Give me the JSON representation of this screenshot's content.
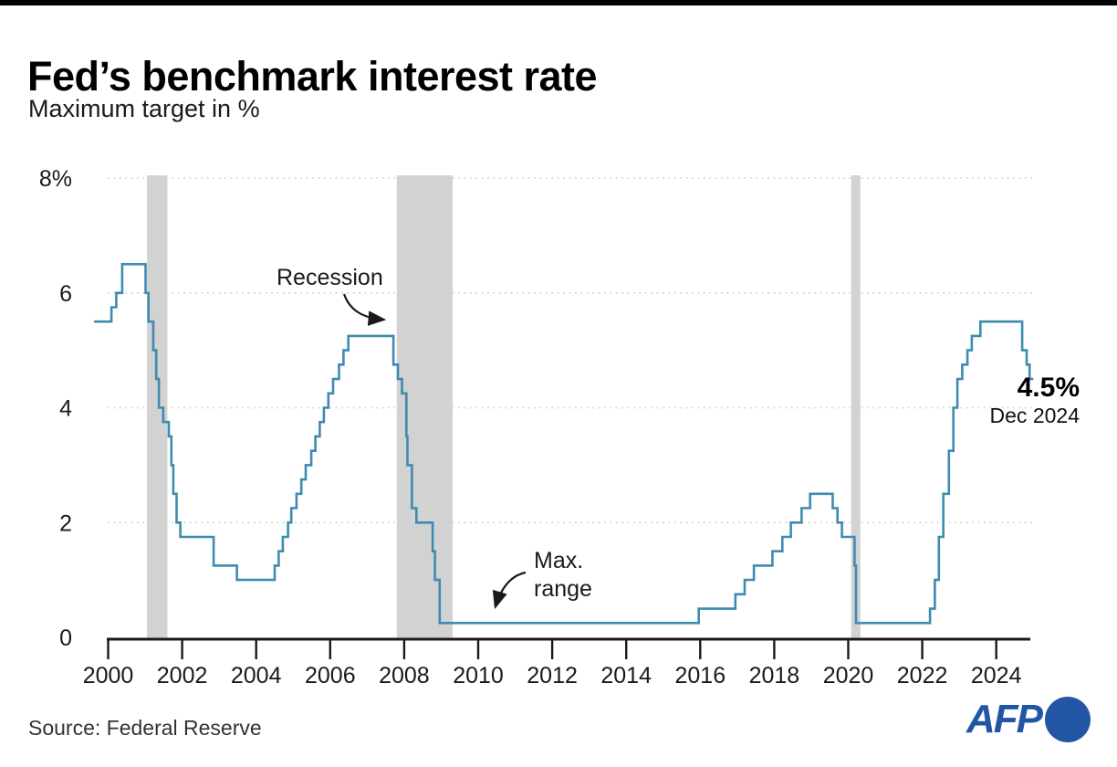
{
  "header": {
    "title": "Fed’s benchmark interest rate",
    "subtitle": "Maximum target in %"
  },
  "annotations": {
    "recession_label": "Recession",
    "max_range_line1": "Max.",
    "max_range_line2": "range",
    "latest_value": "4.5%",
    "latest_date": "Dec 2024"
  },
  "footer": {
    "source": "Source: Federal Reserve",
    "logo_text": "AFP"
  },
  "colors": {
    "line": "#3e8bb0",
    "recession_band": "#d2d2d2",
    "grid": "#d6d6d6",
    "axis": "#1a1a1a",
    "text": "#1a1a1a",
    "afp_blue": "#2256a5"
  },
  "chart_data": {
    "type": "line",
    "step": true,
    "title": "Fed’s benchmark interest rate",
    "ylabel": "Maximum target in %",
    "unit": "%",
    "xlim": [
      1999.62,
      2025.0
    ],
    "ylim": [
      0,
      8
    ],
    "grid": "horizontal-dotted",
    "legend": "none",
    "x_ticks": [
      2000,
      2002,
      2004,
      2006,
      2008,
      2010,
      2012,
      2014,
      2016,
      2018,
      2020,
      2022,
      2024
    ],
    "y_ticks": [
      {
        "label": "8%",
        "value": 8
      },
      {
        "label": "6",
        "value": 6
      },
      {
        "label": "4",
        "value": 4
      },
      {
        "label": "2",
        "value": 2
      },
      {
        "label": "0",
        "value": 0
      }
    ],
    "recession_bands": [
      [
        2001.05,
        2001.6
      ],
      [
        2007.8,
        2009.31
      ],
      [
        2020.08,
        2020.33
      ]
    ],
    "series": [
      {
        "name": "Fed benchmark interest rate (maximum target, %)",
        "points": [
          [
            1999.62,
            5.5
          ],
          [
            2000.09,
            5.75
          ],
          [
            2000.22,
            6.0
          ],
          [
            2000.38,
            6.5
          ],
          [
            2001.01,
            6.0
          ],
          [
            2001.09,
            5.5
          ],
          [
            2001.22,
            5.0
          ],
          [
            2001.3,
            4.5
          ],
          [
            2001.37,
            4.0
          ],
          [
            2001.49,
            3.75
          ],
          [
            2001.64,
            3.5
          ],
          [
            2001.71,
            3.0
          ],
          [
            2001.76,
            2.5
          ],
          [
            2001.85,
            2.0
          ],
          [
            2001.95,
            1.75
          ],
          [
            2002.85,
            1.25
          ],
          [
            2003.48,
            1.0
          ],
          [
            2004.5,
            1.25
          ],
          [
            2004.61,
            1.5
          ],
          [
            2004.72,
            1.75
          ],
          [
            2004.86,
            2.0
          ],
          [
            2004.95,
            2.25
          ],
          [
            2005.09,
            2.5
          ],
          [
            2005.22,
            2.75
          ],
          [
            2005.34,
            3.0
          ],
          [
            2005.49,
            3.25
          ],
          [
            2005.6,
            3.5
          ],
          [
            2005.72,
            3.75
          ],
          [
            2005.83,
            4.0
          ],
          [
            2005.95,
            4.25
          ],
          [
            2006.08,
            4.5
          ],
          [
            2006.24,
            4.75
          ],
          [
            2006.36,
            5.0
          ],
          [
            2006.49,
            5.25
          ],
          [
            2007.71,
            4.75
          ],
          [
            2007.83,
            4.5
          ],
          [
            2007.94,
            4.25
          ],
          [
            2008.06,
            3.5
          ],
          [
            2008.09,
            3.0
          ],
          [
            2008.21,
            2.25
          ],
          [
            2008.33,
            2.0
          ],
          [
            2008.77,
            1.5
          ],
          [
            2008.83,
            1.0
          ],
          [
            2008.96,
            0.25
          ],
          [
            2015.96,
            0.5
          ],
          [
            2016.95,
            0.75
          ],
          [
            2017.2,
            1.0
          ],
          [
            2017.45,
            1.25
          ],
          [
            2017.95,
            1.5
          ],
          [
            2018.22,
            1.75
          ],
          [
            2018.45,
            2.0
          ],
          [
            2018.74,
            2.25
          ],
          [
            2018.97,
            2.5
          ],
          [
            2019.58,
            2.25
          ],
          [
            2019.71,
            2.0
          ],
          [
            2019.83,
            1.75
          ],
          [
            2020.17,
            1.25
          ],
          [
            2020.21,
            0.25
          ],
          [
            2022.21,
            0.5
          ],
          [
            2022.34,
            1.0
          ],
          [
            2022.45,
            1.75
          ],
          [
            2022.57,
            2.5
          ],
          [
            2022.72,
            3.25
          ],
          [
            2022.84,
            4.0
          ],
          [
            2022.95,
            4.5
          ],
          [
            2023.08,
            4.75
          ],
          [
            2023.22,
            5.0
          ],
          [
            2023.34,
            5.25
          ],
          [
            2023.57,
            5.5
          ],
          [
            2024.7,
            5.0
          ],
          [
            2024.82,
            4.75
          ],
          [
            2024.9,
            4.5
          ]
        ],
        "end_x": 2025.0,
        "latest": {
          "value": 4.5,
          "date": "Dec 2024"
        }
      }
    ]
  }
}
